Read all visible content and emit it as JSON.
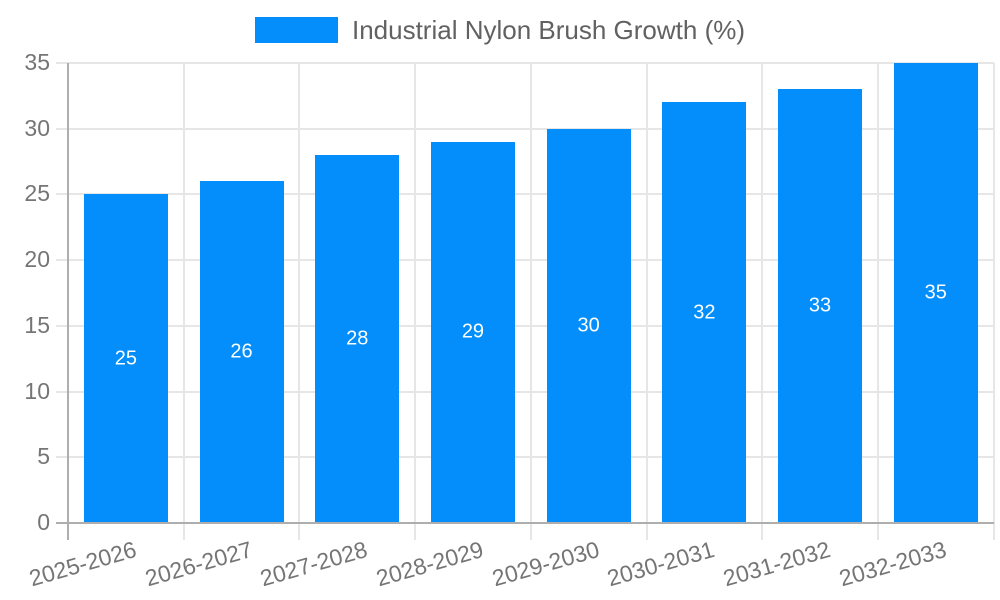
{
  "legend": {
    "label": "Industrial Nylon Brush Growth (%)"
  },
  "chart_data": {
    "type": "bar",
    "title": "Industrial Nylon Brush Growth (%)",
    "series_name": "Industrial Nylon Brush Growth (%)",
    "categories": [
      "2025-2026",
      "2026-2027",
      "2027-2028",
      "2028-2029",
      "2029-2030",
      "2030-2031",
      "2031-2032",
      "2032-2033"
    ],
    "values": [
      25,
      26,
      28,
      29,
      30,
      32,
      33,
      35
    ],
    "value_labels": [
      "25",
      "26",
      "28",
      "29",
      "30",
      "32",
      "33",
      "35"
    ],
    "y_tick_labels": [
      "0",
      "5",
      "10",
      "15",
      "20",
      "25",
      "30",
      "35"
    ],
    "xlabel": "",
    "ylabel": "",
    "ylim": [
      0,
      35
    ],
    "ytick_step": 5,
    "grid": true,
    "legend_position": "top-center",
    "x_label_rotation_deg": -16,
    "colors": {
      "bar": "#038EFB",
      "gridline": "#e6e6e6",
      "axis_line": "#aeaeae",
      "axis_text": "#757575",
      "legend_text": "#616161",
      "value_label": "#ffffff",
      "background": "#ffffff"
    }
  }
}
